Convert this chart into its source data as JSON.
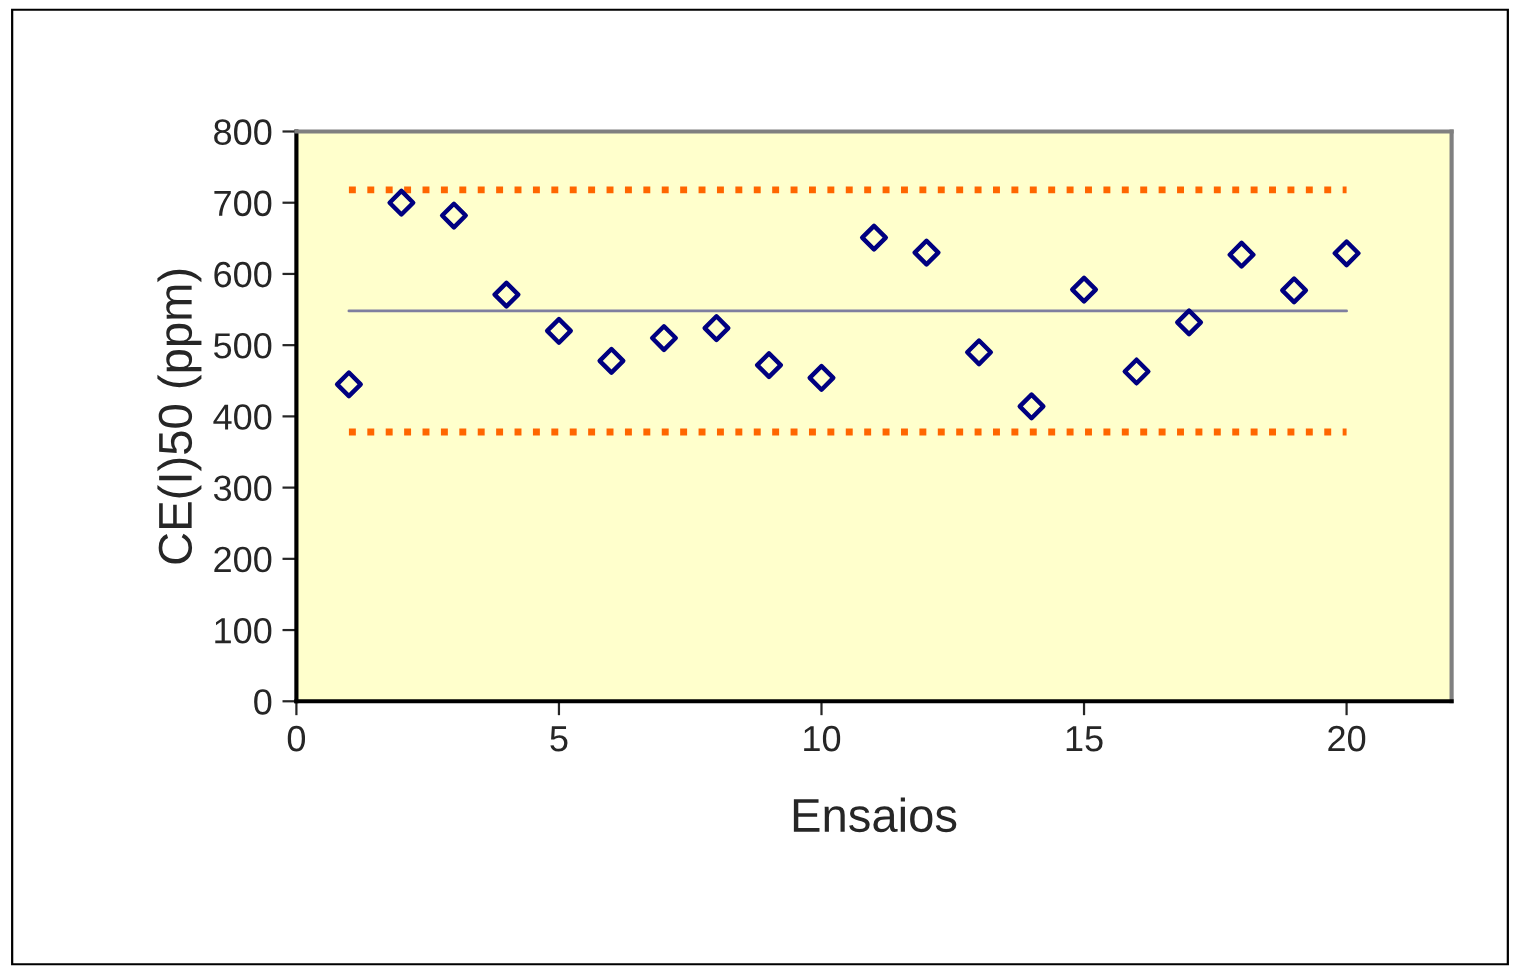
{
  "chart_data": {
    "type": "scatter",
    "xlabel": "Ensaios",
    "ylabel": "CE(I)50 (ppm)",
    "xlim": [
      0,
      22
    ],
    "xticks": [
      0,
      5,
      10,
      15,
      20
    ],
    "ylim": [
      0,
      800
    ],
    "yticks": [
      0,
      100,
      200,
      300,
      400,
      500,
      600,
      700,
      800
    ],
    "grid": false,
    "legend": false,
    "series": [
      {
        "color": "#000080",
        "marker": "diamond",
        "x": [
          1,
          2,
          3,
          4,
          5,
          6,
          7,
          8,
          9,
          10,
          11,
          12,
          13,
          14,
          15,
          16,
          17,
          18,
          19,
          20
        ],
        "values": [
          445,
          700,
          682,
          571,
          520,
          478,
          510,
          524,
          472,
          454,
          651,
          630,
          490,
          414,
          578,
          463,
          532,
          627,
          577,
          629
        ]
      },
      {
        "type": "line",
        "color": "#7f7f9f",
        "line_style": "solid",
        "marker": "none",
        "x": [
          1,
          20
        ],
        "values": [
          548,
          548
        ]
      },
      {
        "type": "line",
        "color": "#ff6600",
        "line_style": "dotted",
        "marker": "none",
        "x": [
          1,
          20
        ],
        "values": [
          718,
          718
        ]
      },
      {
        "type": "line",
        "color": "#ff6600",
        "line_style": "dotted",
        "marker": "none",
        "x": [
          1,
          20
        ],
        "values": [
          378,
          378
        ]
      }
    ]
  }
}
